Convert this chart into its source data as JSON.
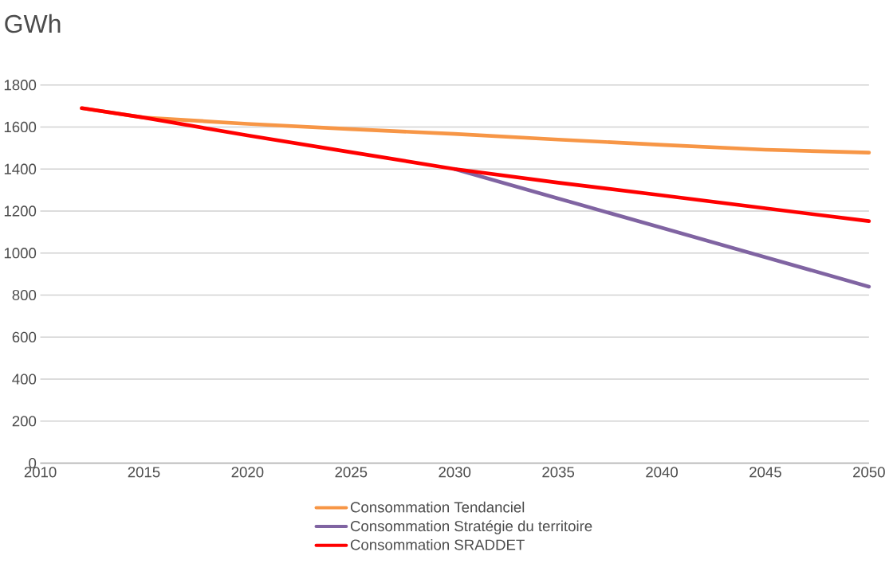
{
  "chart_data": {
    "type": "line",
    "ylabel": "GWh",
    "x": [
      2012,
      2015,
      2020,
      2025,
      2030,
      2035,
      2040,
      2045,
      2050
    ],
    "series": [
      {
        "name": "Consommation Tendanciel",
        "color": "#f79646",
        "values": [
          1690,
          1645,
          1615,
          1590,
          1567,
          1540,
          1515,
          1492,
          1478
        ]
      },
      {
        "name": "Consommation Stratégie du territoire",
        "color": "#8064a2",
        "values": [
          null,
          null,
          null,
          null,
          1400,
          1260,
          1120,
          980,
          840
        ]
      },
      {
        "name": "Consommation SRADDET",
        "color": "#ff0000",
        "values": [
          1690,
          1645,
          1560,
          1480,
          1400,
          1335,
          1275,
          1213,
          1152
        ]
      }
    ],
    "xlim": [
      2010,
      2050
    ],
    "xticks": [
      2010,
      2015,
      2020,
      2025,
      2030,
      2035,
      2040,
      2045,
      2050
    ],
    "ylim": [
      0,
      1800
    ],
    "yticks": [
      0,
      200,
      400,
      600,
      800,
      1000,
      1200,
      1400,
      1600,
      1800
    ],
    "grid": "y",
    "legend": "bottom",
    "marker": "none",
    "line_style": "solid"
  }
}
